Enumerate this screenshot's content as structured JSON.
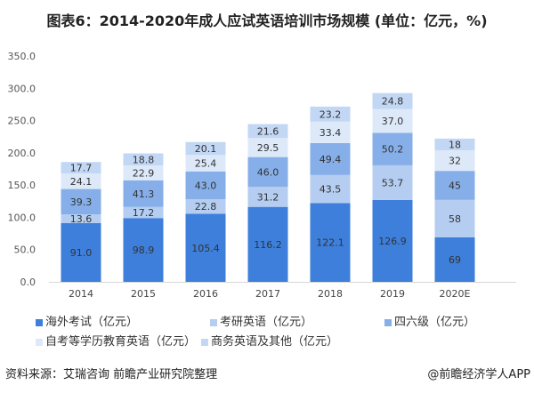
{
  "title": "图表6：2014-2020年成人应试英语培训市场规模 (单位：亿元，%)",
  "source": "资料来源：艾瑞咨询 前瞻产业研究院整理",
  "credit": "@前瞻经济学人APP",
  "chart_data": {
    "type": "bar",
    "stacked": true,
    "categories": [
      "2014",
      "2015",
      "2016",
      "2017",
      "2018",
      "2019",
      "2020E"
    ],
    "ylim": [
      0,
      350
    ],
    "yticks": [
      "0.0",
      "50.0",
      "100.0",
      "150.0",
      "200.0",
      "250.0",
      "300.0",
      "350.0"
    ],
    "legend_position": "bottom",
    "grid": false,
    "series": [
      {
        "name": "海外考试（亿元）",
        "color": "#3d7fdb",
        "values": [
          91.0,
          98.9,
          105.4,
          116.2,
          122.1,
          126.9,
          69
        ],
        "labels": [
          "91.0",
          "98.9",
          "105.4",
          "116.2",
          "122.1",
          "126.9",
          "69"
        ]
      },
      {
        "name": "考研英语（亿元）",
        "color": "#b4cdf0",
        "values": [
          13.6,
          17.2,
          22.8,
          31.2,
          43.5,
          53.7,
          58
        ],
        "labels": [
          "13.6",
          "17.2",
          "22.8",
          "31.2",
          "43.5",
          "53.7",
          "58"
        ]
      },
      {
        "name": "四六级（亿元）",
        "color": "#86aee8",
        "values": [
          39.3,
          41.3,
          43.0,
          46.0,
          49.4,
          50.2,
          45
        ],
        "labels": [
          "39.3",
          "41.3",
          "43.0",
          "46.0",
          "49.4",
          "50.2",
          "45"
        ]
      },
      {
        "name": "自考等学历教育英语（亿元）",
        "color": "#dde9f9",
        "values": [
          24.1,
          22.9,
          25.4,
          29.5,
          33.4,
          37.0,
          32
        ],
        "labels": [
          "24.1",
          "22.9",
          "25.4",
          "29.5",
          "33.4",
          "37.0",
          "32"
        ]
      },
      {
        "name": "商务英语及其他（亿元）",
        "color": "#c2d7f4",
        "values": [
          17.7,
          18.8,
          20.1,
          21.6,
          23.2,
          24.8,
          18
        ],
        "labels": [
          "17.7",
          "18.8",
          "20.1",
          "21.6",
          "23.2",
          "24.8",
          "18"
        ]
      }
    ]
  }
}
